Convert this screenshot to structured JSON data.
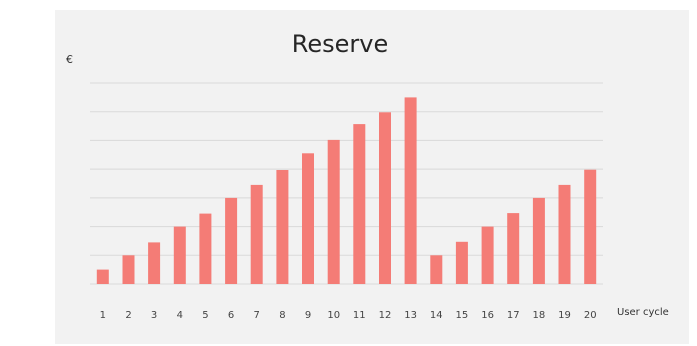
{
  "chart_data": {
    "type": "bar",
    "title": "Reserve",
    "ylabel": "€",
    "xlabel": "User cycle",
    "categories": [
      "1",
      "2",
      "3",
      "4",
      "5",
      "6",
      "7",
      "8",
      "9",
      "10",
      "11",
      "12",
      "13",
      "14",
      "15",
      "16",
      "17",
      "18",
      "19",
      "20"
    ],
    "values": [
      0.5,
      1,
      1.45,
      2,
      2.45,
      3,
      3.45,
      3.97,
      4.55,
      5.02,
      5.57,
      5.98,
      6.5,
      1,
      1.47,
      2,
      2.47,
      3,
      3.45,
      3.98
    ],
    "ylim": [
      0,
      7
    ],
    "grid": true,
    "legend": "none",
    "colors": {
      "bar": "#f47c76",
      "grid": "#d9d9d9",
      "panel": "#f2f2f2"
    }
  }
}
